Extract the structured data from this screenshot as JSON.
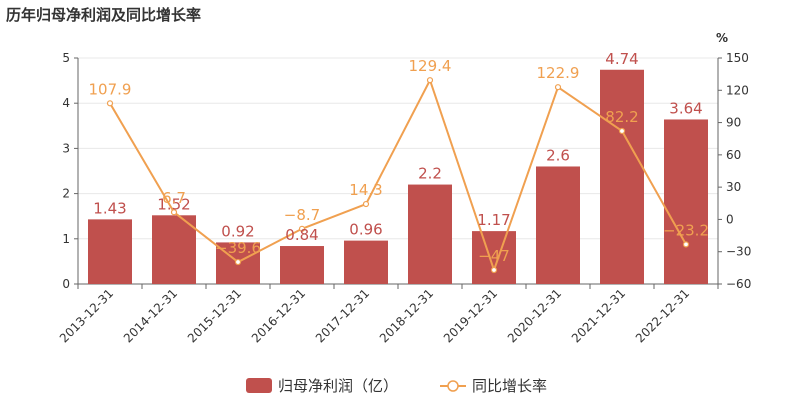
{
  "chart_data": {
    "title": "历年归母净利润及同比增长率",
    "type": "bar",
    "categories": [
      "2013-12-31",
      "2014-12-31",
      "2015-12-31",
      "2016-12-31",
      "2017-12-31",
      "2018-12-31",
      "2019-12-31",
      "2020-12-31",
      "2021-12-31",
      "2022-12-31"
    ],
    "series": [
      {
        "name": "归母净利润（亿）",
        "type": "bar",
        "axis": "left",
        "color": "#c0504d",
        "values": [
          1.43,
          1.52,
          0.92,
          0.84,
          0.96,
          2.2,
          1.17,
          2.6,
          4.74,
          3.64
        ],
        "labels": [
          "1.43",
          "1.52",
          "0.92",
          "0.84",
          "0.96",
          "2.2",
          "1.17",
          "2.6",
          "4.74",
          "3.64"
        ]
      },
      {
        "name": "同比增长率",
        "type": "line",
        "axis": "right",
        "color": "#f0a050",
        "values": [
          107.9,
          6.7,
          -39.6,
          -8.7,
          14.3,
          129.4,
          -47,
          122.9,
          82.2,
          -23.2
        ],
        "labels": [
          "107.9",
          "6.7",
          "−39.6",
          "−8.7",
          "14.3",
          "129.4",
          "−47",
          "122.9",
          "82.2",
          "−23.2"
        ]
      }
    ],
    "y_left": {
      "min": 0,
      "max": 5,
      "ticks": [
        "0",
        "1",
        "2",
        "3",
        "4",
        "5"
      ]
    },
    "y_right": {
      "min": -60,
      "max": 150,
      "unit": "%",
      "ticks": [
        "−60",
        "−30",
        "0",
        "30",
        "60",
        "90",
        "120",
        "150"
      ]
    },
    "grid": true,
    "legend": "bottom-center"
  }
}
